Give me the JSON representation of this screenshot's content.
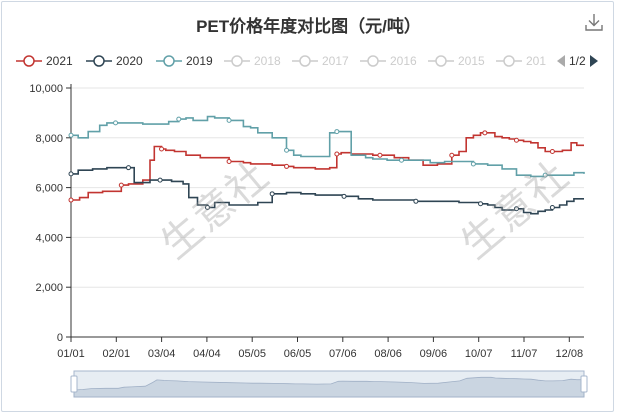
{
  "chart_data": {
    "type": "line",
    "title": "PET价格年度对比图（元/吨）",
    "xlabel": "",
    "ylabel": "",
    "ylim": [
      0,
      10000
    ],
    "yticks": [
      0,
      2000,
      4000,
      6000,
      8000,
      10000
    ],
    "ytick_labels": [
      "0",
      "2,000",
      "4,000",
      "6,000",
      "8,000",
      "10,000"
    ],
    "xticks": [
      "01/01",
      "02/01",
      "03/04",
      "04/04",
      "05/05",
      "06/05",
      "07/06",
      "08/06",
      "09/06",
      "10/07",
      "11/07",
      "12/08"
    ],
    "xlim_days": [
      0,
      357
    ],
    "grid": true,
    "legend_position": "top",
    "series": [
      {
        "name": "2021",
        "color": "#c23531",
        "x_days": [
          0,
          6,
          12,
          22,
          31,
          35,
          40,
          50,
          55,
          58,
          63,
          66,
          72,
          80,
          90,
          110,
          120,
          125,
          130,
          140,
          150,
          155,
          160,
          170,
          180,
          185,
          188,
          195,
          205,
          210,
          215,
          225,
          235,
          245,
          255,
          265,
          270,
          275,
          280,
          285,
          288,
          292,
          295,
          300,
          305,
          310,
          315,
          320,
          325,
          330,
          335,
          342,
          348,
          352,
          357
        ],
        "values": [
          5500,
          5600,
          5800,
          5850,
          5850,
          6100,
          6150,
          6300,
          7100,
          7650,
          7550,
          7500,
          7450,
          7300,
          7200,
          7050,
          7000,
          6950,
          6950,
          6900,
          6850,
          6800,
          6800,
          6750,
          6800,
          7350,
          7400,
          7350,
          7350,
          7300,
          7300,
          7200,
          7100,
          6900,
          6950,
          7300,
          7450,
          8000,
          8100,
          8200,
          8200,
          8200,
          8050,
          8000,
          7950,
          7900,
          7850,
          7800,
          7600,
          7450,
          7450,
          7500,
          7800,
          7700,
          7700
        ]
      },
      {
        "name": "2020",
        "color": "#2f4554",
        "x_days": [
          0,
          5,
          15,
          25,
          31,
          40,
          44,
          48,
          55,
          58,
          62,
          70,
          78,
          82,
          88,
          95,
          100,
          110,
          120,
          130,
          140,
          150,
          160,
          170,
          180,
          190,
          200,
          210,
          220,
          230,
          240,
          250,
          260,
          270,
          280,
          285,
          290,
          295,
          300,
          305,
          310,
          315,
          320,
          325,
          330,
          335,
          340,
          345,
          350,
          357
        ],
        "values": [
          6550,
          6700,
          6750,
          6800,
          6800,
          6800,
          6200,
          6200,
          6300,
          6300,
          6300,
          6250,
          6150,
          5600,
          5300,
          5200,
          5400,
          5300,
          5300,
          5400,
          5750,
          5800,
          5750,
          5700,
          5700,
          5650,
          5550,
          5500,
          5500,
          5500,
          5450,
          5450,
          5450,
          5400,
          5400,
          5350,
          5300,
          5200,
          5100,
          5100,
          5150,
          5000,
          4950,
          5050,
          5100,
          5200,
          5300,
          5450,
          5550,
          5550
        ]
      },
      {
        "name": "2019",
        "color": "#61a0a8",
        "x_days": [
          0,
          5,
          12,
          20,
          25,
          31,
          40,
          50,
          62,
          68,
          75,
          80,
          85,
          95,
          100,
          110,
          120,
          125,
          130,
          140,
          150,
          155,
          160,
          170,
          180,
          185,
          195,
          205,
          210,
          220,
          230,
          240,
          250,
          260,
          270,
          280,
          290,
          300,
          310,
          320,
          330,
          340,
          350,
          357
        ],
        "values": [
          8100,
          8000,
          8250,
          8500,
          8600,
          8600,
          8600,
          8550,
          8550,
          8650,
          8750,
          8800,
          8700,
          8850,
          8800,
          8700,
          8450,
          8400,
          8200,
          8000,
          7500,
          7300,
          7250,
          7250,
          8200,
          8250,
          7300,
          7200,
          7150,
          7100,
          7100,
          7100,
          7000,
          7050,
          7050,
          6950,
          6900,
          6750,
          6500,
          6450,
          6500,
          6500,
          6600,
          6550
        ]
      },
      {
        "name": "2018",
        "color": "#cccccc",
        "inactive": true
      },
      {
        "name": "2017",
        "color": "#cccccc",
        "inactive": true
      },
      {
        "name": "2016",
        "color": "#cccccc",
        "inactive": true
      },
      {
        "name": "2015",
        "color": "#cccccc",
        "inactive": true
      },
      {
        "name": "201",
        "color": "#cccccc",
        "inactive": true
      }
    ],
    "watermarks": [
      "生意社",
      "生意社"
    ]
  },
  "legend_pager": {
    "label": "1/2"
  },
  "colors": {
    "axis": "#333333",
    "grid": "#e6e6e6",
    "slider_fill": "#d0dbe8",
    "slider_handle": "#a7b7cc",
    "inactive": "#cccccc"
  }
}
